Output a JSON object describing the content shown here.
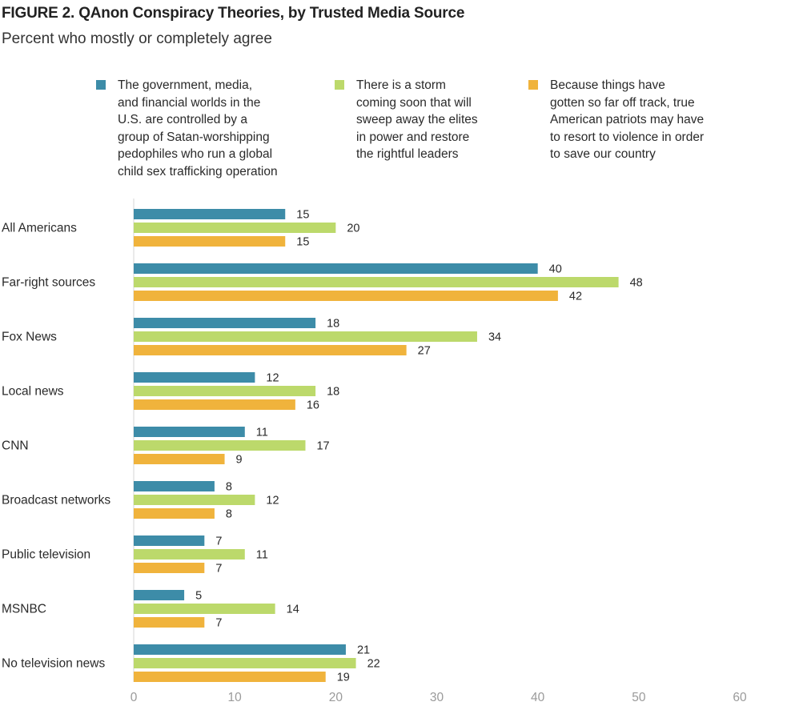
{
  "figure": {
    "number": "FIGURE 2.",
    "title": "QAnon Conspiracy Theories, by Trusted Media Source",
    "subtitle": "Percent who mostly or completely agree"
  },
  "chart_data": {
    "type": "bar",
    "orientation": "horizontal",
    "title": "QAnon Conspiracy Theories, by Trusted Media Source",
    "subtitle": "Percent who mostly or completely agree",
    "xlabel": "",
    "ylabel": "",
    "xlim": [
      0,
      60
    ],
    "xticks": [
      0,
      10,
      20,
      30,
      40,
      50,
      60
    ],
    "grid": false,
    "legend_position": "top",
    "categories": [
      "All Americans",
      "Far-right sources",
      "Fox News",
      "Local news",
      "CNN",
      "Broadcast networks",
      "Public television",
      "MSNBC",
      "No television news"
    ],
    "series": [
      {
        "name": "The government, media,\nand financial worlds in the\nU.S. are controlled by a\ngroup of Satan-worshipping\npedophiles who run a global\nchild sex trafficking operation",
        "color": "#3d8ca8",
        "values": [
          15,
          40,
          18,
          12,
          11,
          8,
          7,
          5,
          21
        ]
      },
      {
        "name": "There is a storm\ncoming soon that will\nsweep away the elites\nin power and restore\nthe rightful leaders",
        "color": "#bcd96b",
        "values": [
          20,
          48,
          34,
          18,
          17,
          12,
          11,
          14,
          22
        ]
      },
      {
        "name": "Because things have\ngotten so far off track, true\nAmerican patriots may have\nto resort to violence in order\nto save our country",
        "color": "#f0b33c",
        "values": [
          15,
          42,
          27,
          16,
          9,
          8,
          7,
          7,
          19
        ]
      }
    ]
  }
}
